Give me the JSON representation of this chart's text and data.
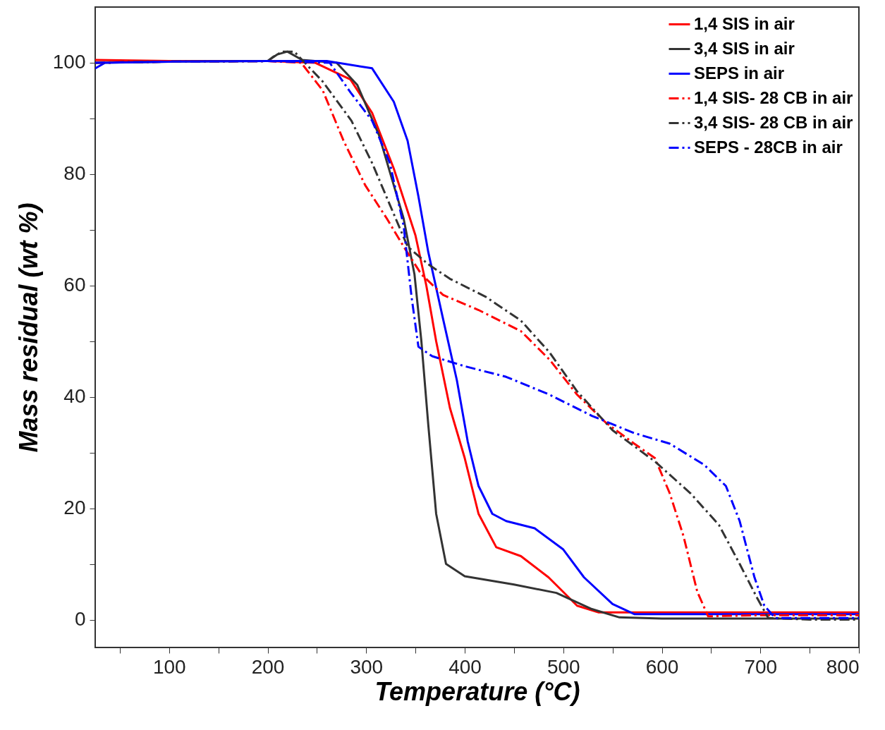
{
  "chart_data": {
    "type": "line",
    "xlabel": "Temperature (°C)",
    "ylabel": "Mass residual (wt %)",
    "xlim": [
      25,
      800
    ],
    "ylim": [
      -5,
      110
    ],
    "xticks": [
      {
        "value": 50,
        "label": null
      },
      100,
      {
        "value": 150,
        "label": null
      },
      200,
      {
        "value": 250,
        "label": null
      },
      300,
      {
        "value": 350,
        "label": null
      },
      400,
      {
        "value": 450,
        "label": null
      },
      500,
      {
        "value": 550,
        "label": null
      },
      600,
      {
        "value": 650,
        "label": null
      },
      700,
      {
        "value": 750,
        "label": null
      },
      800
    ],
    "yticks": [
      0,
      {
        "value": 10,
        "label": null
      },
      20,
      {
        "value": 30,
        "label": null
      },
      40,
      {
        "value": 50,
        "label": null
      },
      60,
      {
        "value": 70,
        "label": null
      },
      80,
      {
        "value": 90,
        "label": null
      },
      100
    ],
    "grid": false,
    "legend": "top right",
    "marker": "none",
    "series": [
      {
        "name": "1,4 SIS in air",
        "color": "#ff0000",
        "line_style": "solid",
        "x": [
          25,
          100,
          200,
          248,
          284,
          306,
          328,
          350,
          361,
          371,
          385,
          400,
          414,
          432,
          457,
          485,
          514,
          536,
          600,
          800
        ],
        "values": [
          100.5,
          100.3,
          100.3,
          100,
          97,
          91,
          81,
          69,
          60,
          50,
          38,
          29,
          19,
          13,
          11.4,
          7.6,
          2.5,
          1.3,
          1.3,
          1.3
        ]
      },
      {
        "name": "3,4 SIS in air",
        "color": "#333333",
        "line_style": "solid",
        "x": [
          25,
          100,
          200,
          210,
          220,
          235,
          270,
          291,
          313,
          328,
          338,
          349,
          356,
          363,
          371,
          381,
          400,
          450,
          493,
          529,
          557,
          600,
          800
        ],
        "values": [
          100,
          100.2,
          100.3,
          101.5,
          102,
          100.5,
          100,
          96,
          87,
          78,
          72,
          62,
          50,
          35,
          19,
          10,
          7.8,
          6.3,
          4.8,
          1.9,
          0.4,
          0.2,
          0.2
        ]
      },
      {
        "name": "SEPS in air",
        "color": "#0000ff",
        "line_style": "solid",
        "x": [
          25,
          35,
          100,
          200,
          260,
          306,
          328,
          342,
          353,
          363,
          378,
          392,
          403,
          414,
          428,
          442,
          471,
          500,
          521,
          550,
          572,
          600,
          800
        ],
        "values": [
          99,
          100,
          100.2,
          100.3,
          100.3,
          99,
          93,
          86,
          76,
          66,
          54,
          43,
          32,
          24,
          19,
          17.7,
          16.4,
          12.6,
          7.6,
          2.8,
          1,
          1,
          1
        ]
      },
      {
        "name": "1,4 SIS- 28 CB in air",
        "color": "#ff0000",
        "line_style": "dashdot",
        "x": [
          25,
          100,
          200,
          234,
          256,
          277,
          299,
          321,
          338,
          356,
          378,
          414,
          457,
          486,
          514,
          543,
          572,
          593,
          608,
          622,
          636,
          647,
          700,
          800
        ],
        "values": [
          100,
          100.2,
          100.3,
          100,
          95,
          86,
          78,
          72,
          67,
          62,
          58.3,
          55.6,
          51.8,
          46.7,
          40.4,
          35.4,
          31.6,
          29,
          22.7,
          15,
          5,
          0.6,
          0.8,
          0.8
        ]
      },
      {
        "name": "3,4 SIS- 28 CB in air",
        "color": "#333333",
        "line_style": "dashdot",
        "x": [
          25,
          100,
          200,
          205,
          215,
          227,
          256,
          285,
          306,
          324,
          342,
          363,
          385,
          421,
          457,
          486,
          514,
          550,
          593,
          629,
          658,
          679,
          697,
          708,
          750,
          800
        ],
        "values": [
          100,
          100.2,
          100.3,
          101,
          102,
          102,
          96.6,
          89.6,
          82,
          74.5,
          67,
          63.8,
          61.2,
          58,
          53.7,
          48,
          41,
          34,
          28.4,
          22.7,
          17,
          10,
          3.8,
          0.3,
          0,
          0
        ]
      },
      {
        "name": "SEPS - 28CB in air",
        "color": "#0000ff",
        "line_style": "dashdot",
        "x": [
          25,
          100,
          200,
          263,
          284,
          306,
          324,
          338,
          346,
          353,
          367,
          400,
          442,
          486,
          529,
          572,
          608,
          643,
          665,
          679,
          694,
          704,
          715,
          800
        ],
        "values": [
          100,
          100.2,
          100.3,
          100,
          94.7,
          89.6,
          82,
          70.7,
          58,
          49,
          47.3,
          45.5,
          43.6,
          40.4,
          36.6,
          33.5,
          31.6,
          27.8,
          24,
          17.7,
          7.6,
          2.5,
          0.3,
          0.3
        ]
      }
    ]
  }
}
